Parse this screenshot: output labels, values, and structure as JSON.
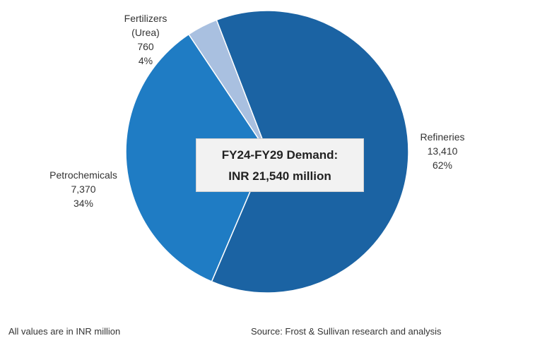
{
  "chart_data": {
    "type": "pie",
    "categories": [
      "Refineries",
      "Petrochemicals",
      "Fertilizers (Urea)"
    ],
    "values": [
      13410,
      7370,
      760
    ],
    "value_labels": [
      "13,410",
      "7,370",
      "760"
    ],
    "percentages": [
      62,
      34,
      4
    ],
    "percentage_labels": [
      "62%",
      "34%",
      "4%"
    ],
    "colors": [
      "#1b63a3",
      "#1f7cc4",
      "#a9c0e0"
    ],
    "annotations": [
      "FY24-FY29 Demand:",
      "INR 21,540 million"
    ],
    "footnote": "All values are in INR million",
    "source": "Source: Frost & Sullivan research and analysis"
  }
}
